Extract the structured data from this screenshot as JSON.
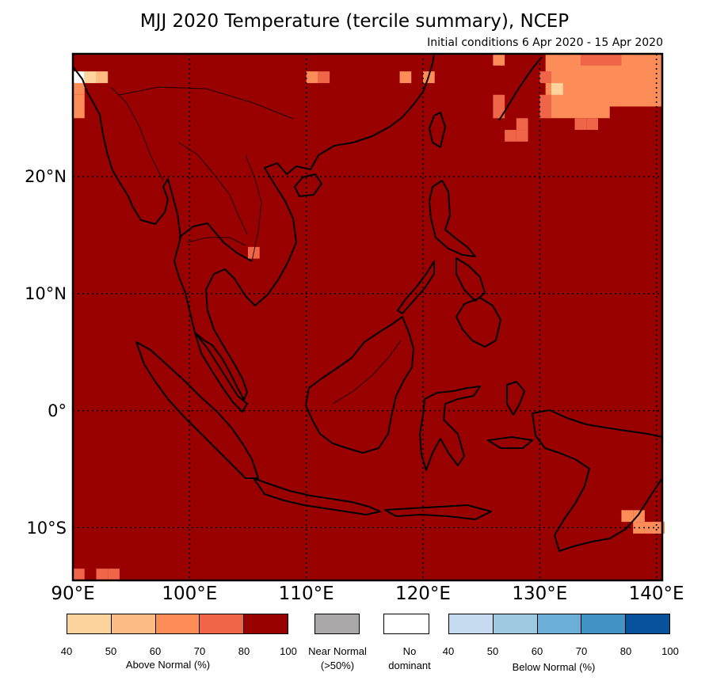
{
  "title": "MJJ 2020 Temperature (tercile summary), NCEP",
  "subtitle": "Initial conditions 6 Apr 2020 - 15 Apr 2020",
  "map": {
    "lon_range": [
      90,
      140.5
    ],
    "lat_range": [
      -14.5,
      30.5
    ],
    "lon_labels": [
      {
        "value": 90,
        "text": "90°E"
      },
      {
        "value": 100,
        "text": "100°E"
      },
      {
        "value": 110,
        "text": "110°E"
      },
      {
        "value": 120,
        "text": "120°E"
      },
      {
        "value": 130,
        "text": "130°E"
      },
      {
        "value": 140,
        "text": "140°E"
      }
    ],
    "lat_labels": [
      {
        "value": 20,
        "text": "20°N"
      },
      {
        "value": 10,
        "text": "10°N"
      },
      {
        "value": 0,
        "text": "0°"
      },
      {
        "value": -10,
        "text": "10°S"
      }
    ],
    "background_category": "Above Normal 80-100%",
    "background_color": "#990000",
    "gridlines": "dotted",
    "anomaly_cells": [
      {
        "lon": 90.5,
        "lat": 28.5,
        "color": "#ffffff"
      },
      {
        "lon": 91.5,
        "lat": 28.5,
        "color": "#fdd49e"
      },
      {
        "lon": 92.5,
        "lat": 28.5,
        "color": "#fdbb84"
      },
      {
        "lon": 90.5,
        "lat": 27.5,
        "color": "#fc8d59"
      },
      {
        "lon": 90.5,
        "lat": 26.5,
        "color": "#fc8d59"
      },
      {
        "lon": 90.5,
        "lat": 25.5,
        "color": "#fc8d59"
      },
      {
        "lon": 110.5,
        "lat": 28.5,
        "color": "#fc8d59"
      },
      {
        "lon": 111.5,
        "lat": 28.5,
        "color": "#ef6548"
      },
      {
        "lon": 118.5,
        "lat": 28.5,
        "color": "#fc8d59"
      },
      {
        "lon": 120.5,
        "lat": 28.5,
        "color": "#fc8d59"
      },
      {
        "lon": 126.5,
        "lat": 30.0,
        "color": "#fc8d59"
      },
      {
        "lon": 126.5,
        "lat": 26.5,
        "color": "#ef6548"
      },
      {
        "lon": 126.5,
        "lat": 25.5,
        "color": "#ef6548"
      },
      {
        "lon": 128.5,
        "lat": 24.5,
        "color": "#ef6548"
      },
      {
        "lon": 128.5,
        "lat": 23.5,
        "color": "#ef6548"
      },
      {
        "lon": 127.5,
        "lat": 23.5,
        "color": "#ef6548"
      },
      {
        "lon": 130.5,
        "lat": 28.5,
        "color": "#ef6548"
      },
      {
        "lon": 130.5,
        "lat": 26.5,
        "color": "#ef6548"
      },
      {
        "lon": 130.5,
        "lat": 25.5,
        "color": "#ef6548"
      },
      {
        "lon": 131.5,
        "lat": 27.5,
        "color": "#fdd49e"
      },
      {
        "lon": 133.5,
        "lat": 24.5,
        "color": "#ef6548"
      },
      {
        "lon": 134.5,
        "lat": 24.5,
        "color": "#ef6548"
      },
      {
        "lon": 105.5,
        "lat": 13.5,
        "color": "#ef6548"
      },
      {
        "lon": 137.5,
        "lat": -9.0,
        "color": "#fc8d59"
      },
      {
        "lon": 138.5,
        "lat": -9.0,
        "color": "#fc8d59"
      },
      {
        "lon": 138.5,
        "lat": -10.0,
        "color": "#fc8d59"
      },
      {
        "lon": 139.5,
        "lat": -10.0,
        "color": "#fc8d59"
      },
      {
        "lon": 140.2,
        "lat": -10.0,
        "color": "#fc8d59"
      },
      {
        "lon": 90.5,
        "lat": -14.0,
        "color": "#ef6548"
      },
      {
        "lon": 92.5,
        "lat": -14.0,
        "color": "#ef6548"
      },
      {
        "lon": 93.5,
        "lat": -14.0,
        "color": "#ef6548"
      }
    ],
    "anomaly_region": {
      "color": "#fc8d59",
      "polygon": [
        [
          130.5,
          30.5
        ],
        [
          140.5,
          30.5
        ],
        [
          140.5,
          26.0
        ],
        [
          136.0,
          26.0
        ],
        [
          136.0,
          25.0
        ],
        [
          130.5,
          25.0
        ]
      ]
    },
    "anomaly_region_lighter": {
      "color": "#ef6548",
      "polygon": [
        [
          133.5,
          30.5
        ],
        [
          137.0,
          30.5
        ],
        [
          137.0,
          29.5
        ],
        [
          133.5,
          29.5
        ]
      ]
    }
  },
  "legend": {
    "above_normal": {
      "caption": "Above Normal (%)",
      "colors": [
        "#fdd49e",
        "#fdbb84",
        "#fc8d59",
        "#ef6548",
        "#990000"
      ],
      "ticks": [
        "40",
        "50",
        "60",
        "70",
        "80",
        "100"
      ]
    },
    "near_normal": {
      "caption_line1": "Near Normal",
      "caption_line2": "(>50%)",
      "color": "#aaa8a8"
    },
    "no_dominant": {
      "caption_line1": "No",
      "caption_line2": "dominant",
      "color": "#ffffff"
    },
    "below_normal": {
      "caption": "Below Normal (%)",
      "colors": [
        "#c6dbef",
        "#9ecae1",
        "#6baed6",
        "#4292c6",
        "#08519c"
      ],
      "ticks": [
        "40",
        "50",
        "60",
        "70",
        "80",
        "100"
      ]
    }
  }
}
